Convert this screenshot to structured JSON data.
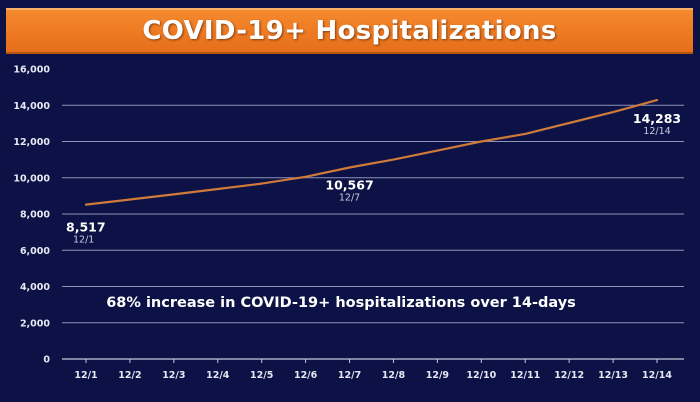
{
  "title": "COVID-19+ Hospitalizations",
  "caption": "68% increase in COVID-19+ hospitalizations over 14-days",
  "colors": {
    "background": "#0c1245",
    "title_bar": "#ee7a22",
    "line": "#cf7a3a",
    "grid": "#8d93b8",
    "text": "#ffffff"
  },
  "chart_data": {
    "type": "line",
    "title": "COVID-19+ Hospitalizations",
    "xlabel": "",
    "ylabel": "",
    "ylim": [
      0,
      16000
    ],
    "yticks": [
      0,
      2000,
      4000,
      6000,
      8000,
      10000,
      12000,
      14000,
      16000
    ],
    "ytick_labels": [
      "0",
      "2,000",
      "4,000",
      "6,000",
      "8,000",
      "10,000",
      "12,000",
      "14,000",
      "16,000"
    ],
    "grid": true,
    "legend": "none",
    "categories": [
      "12/1",
      "12/2",
      "12/3",
      "12/4",
      "12/5",
      "12/6",
      "12/7",
      "12/8",
      "12/9",
      "12/10",
      "12/11",
      "12/12",
      "12/13",
      "12/14"
    ],
    "series": [
      {
        "values": [
          8517,
          8800,
          9080,
          9380,
          9680,
          10050,
          10567,
          11000,
          11500,
          12000,
          12420,
          13020,
          13620,
          14283
        ]
      }
    ],
    "annotations": [
      {
        "index": 0,
        "value_label": "8,517",
        "date_label": "12/1"
      },
      {
        "index": 6,
        "value_label": "10,567",
        "date_label": "12/7"
      },
      {
        "index": 13,
        "value_label": "14,283",
        "date_label": "12/14"
      }
    ]
  }
}
